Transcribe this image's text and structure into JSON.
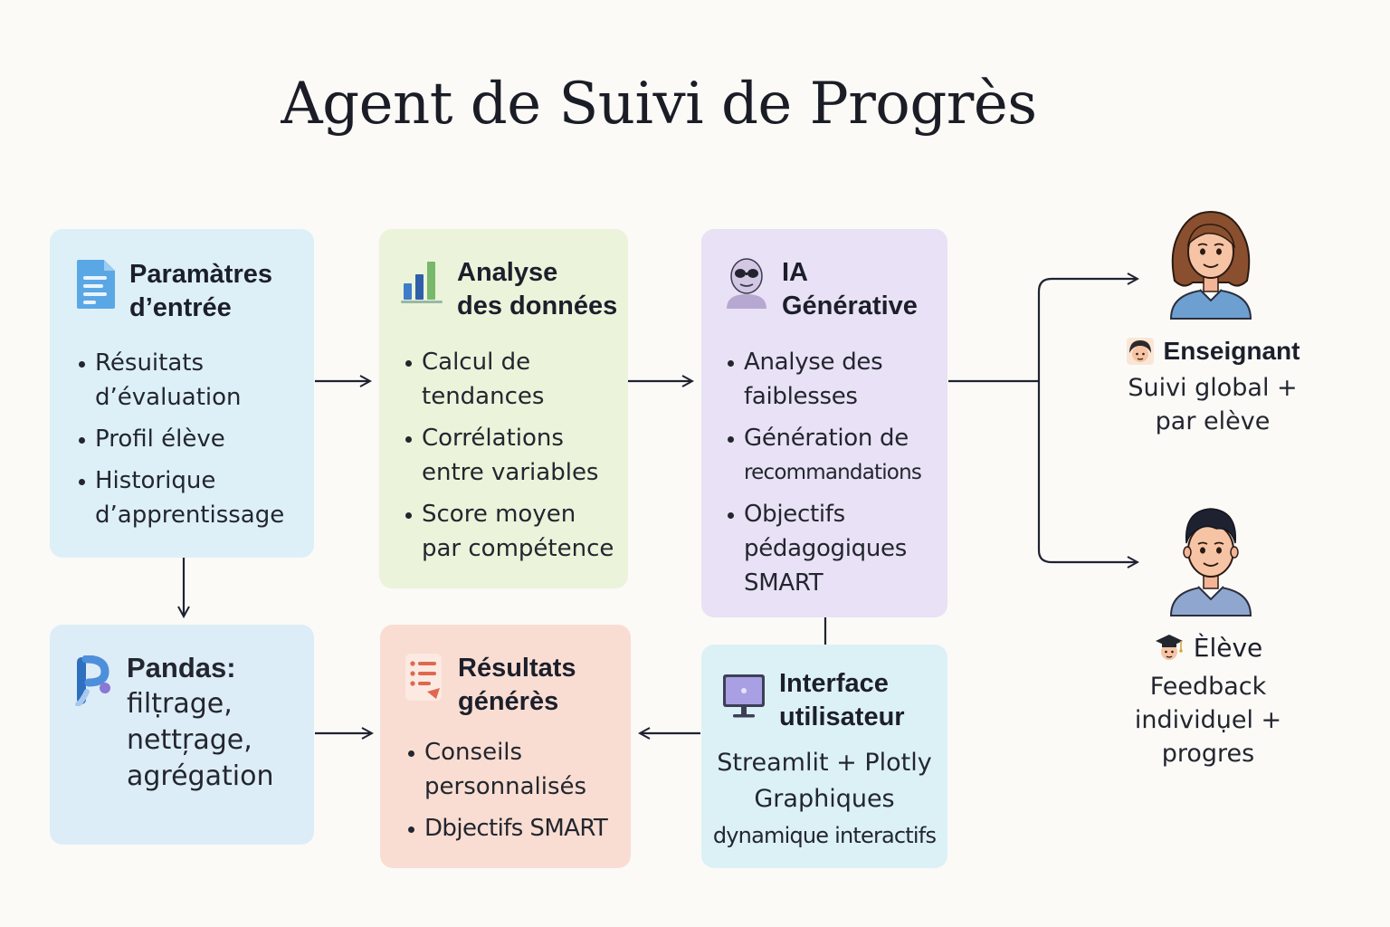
{
  "title": "Agent de Suivi de Progrès",
  "colors": {
    "input_bg": "#ddf0f7",
    "analysis_bg": "#ebf3da",
    "ai_bg": "#e9e1f5",
    "pandas_bg": "#ddedf7",
    "results_bg": "#f9ddd2",
    "interface_bg": "#dcf1f6",
    "arrow": "#1f2230"
  },
  "boxes": {
    "input": {
      "icon": "document-icon",
      "title_lines": [
        "Paramàtres",
        "d’entrée"
      ],
      "bullets": [
        [
          "Résuitats",
          "d’évaluation"
        ],
        [
          "Profil élève"
        ],
        [
          "Historique",
          "d’apprentissage"
        ]
      ]
    },
    "analysis": {
      "icon": "bar-chart-icon",
      "title_lines": [
        "Analyse",
        "des données"
      ],
      "bullets": [
        [
          "Calcul de",
          "tendances"
        ],
        [
          "Corrélations",
          "entre variables"
        ],
        [
          "Score moyen",
          "par compétence"
        ]
      ]
    },
    "ai": {
      "icon": "robot-icon",
      "title_lines": [
        "IA",
        "Générative"
      ],
      "bullets": [
        [
          "Analyse des",
          "faiblesses"
        ],
        [
          "Génération de",
          "recommandations"
        ],
        [
          "Objectifs",
          "pédagogiques",
          "SMART"
        ]
      ]
    },
    "pandas": {
      "icon": "pandas-logo-icon",
      "lines": [
        "Pandas:",
        "filṭrage,",
        "nettŗage,",
        "agrégation"
      ]
    },
    "results": {
      "icon": "list-icon",
      "title_lines": [
        "Résultats",
        "générès"
      ],
      "bullets": [
        [
          "Conseils",
          "personnalisés"
        ],
        [
          "Dbjectifs SMART"
        ]
      ]
    },
    "interface": {
      "icon": "monitor-icon",
      "title_lines": [
        "Interface",
        "utilisateur"
      ],
      "lines": [
        "Streamlit + Plotly",
        "Graphiques",
        "dynamique interactifs"
      ]
    }
  },
  "personas": {
    "teacher": {
      "avatar": "teacher-avatar",
      "role_icon": "teacher-face-icon",
      "role": "Enseignant",
      "desc": [
        "Suivi global +",
        "par elève"
      ]
    },
    "student": {
      "avatar": "student-avatar",
      "role_icon": "graduation-cap-icon",
      "role": "Èlève",
      "desc": [
        "Feedback",
        "individụel +",
        "progres"
      ]
    }
  }
}
